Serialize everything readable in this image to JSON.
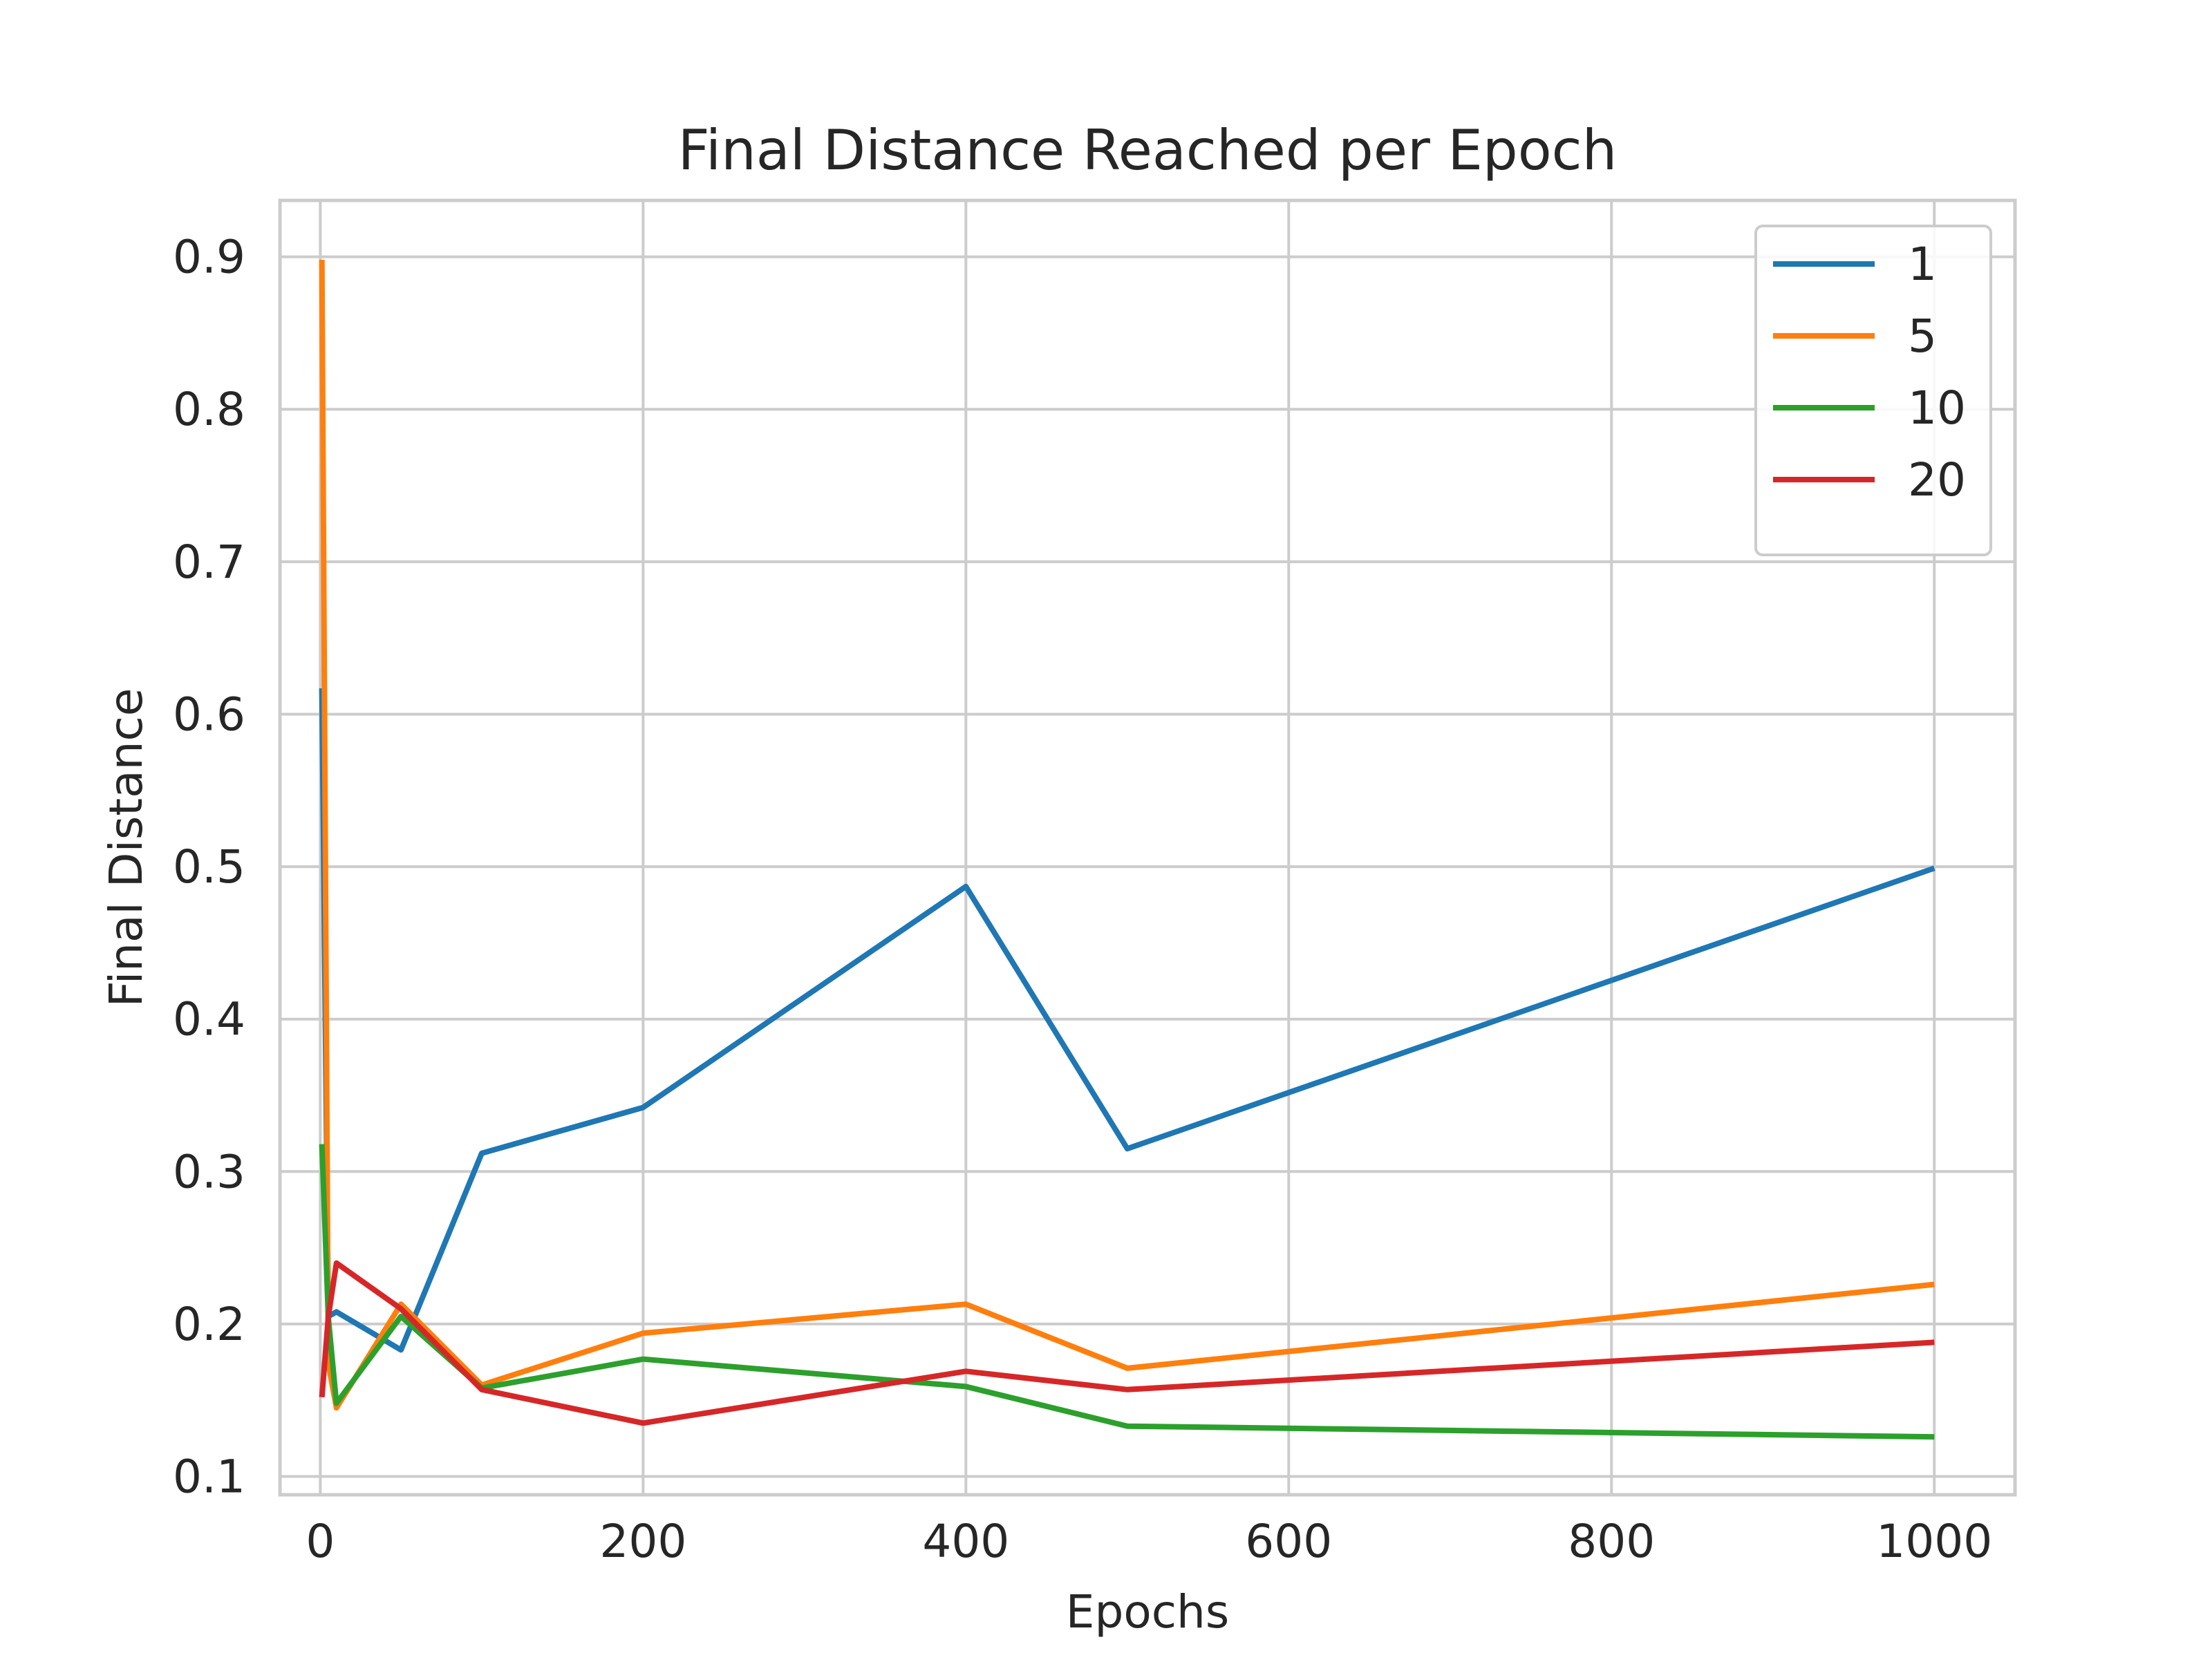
{
  "chart_data": {
    "type": "line",
    "title": "Final Distance Reached per Epoch",
    "xlabel": "Epochs",
    "ylabel": "Final Distance",
    "xlim": [
      -25,
      1050
    ],
    "ylim": [
      0.088,
      0.937
    ],
    "xticks": [
      0,
      200,
      400,
      600,
      800,
      1000
    ],
    "yticks": [
      0.1,
      0.2,
      0.3,
      0.4,
      0.5,
      0.6,
      0.7,
      0.8,
      0.9
    ],
    "grid": true,
    "legend_position": "top-right",
    "x": [
      1,
      5,
      10,
      50,
      100,
      200,
      400,
      500,
      1000
    ],
    "series": [
      {
        "name": "1",
        "color": "#1f77b4",
        "values": [
          0.617,
          0.205,
          0.208,
          0.183,
          0.312,
          0.342,
          0.487,
          0.315,
          0.499
        ]
      },
      {
        "name": "5",
        "color": "#ff7f0e",
        "values": [
          0.898,
          0.174,
          0.145,
          0.213,
          0.16,
          0.194,
          0.213,
          0.171,
          0.226
        ]
      },
      {
        "name": "10",
        "color": "#2ca02c",
        "values": [
          0.318,
          0.204,
          0.148,
          0.205,
          0.158,
          0.177,
          0.159,
          0.133,
          0.126
        ]
      },
      {
        "name": "20",
        "color": "#d62728",
        "values": [
          0.152,
          0.205,
          0.24,
          0.21,
          0.157,
          0.135,
          0.169,
          0.157,
          0.188
        ]
      }
    ]
  }
}
